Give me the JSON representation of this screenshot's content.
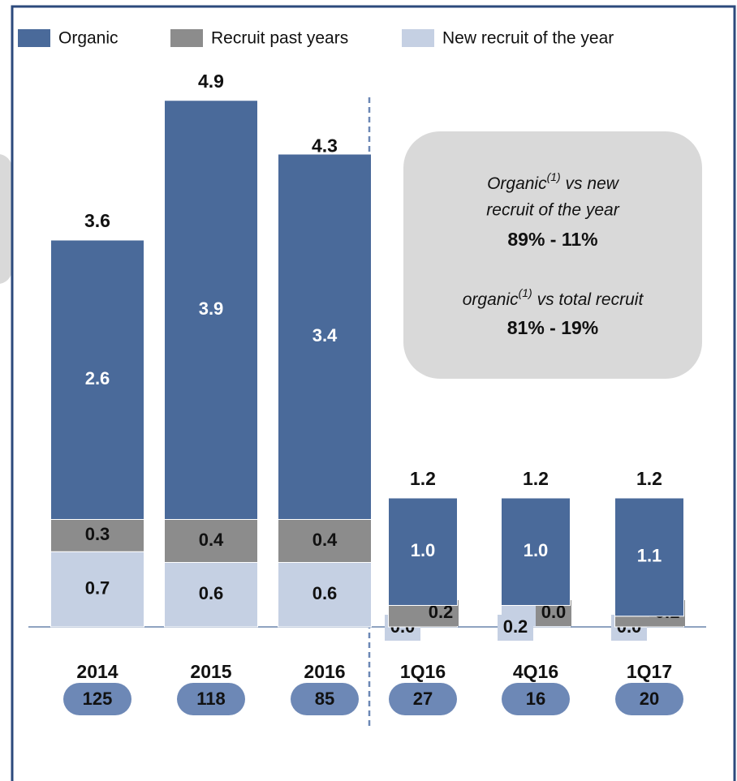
{
  "chart_data": {
    "type": "stacked-bar",
    "categories": [
      "2014",
      "2015",
      "2016",
      "1Q16",
      "4Q16",
      "1Q17"
    ],
    "series": [
      {
        "name": "Organic",
        "color": "#4a6a9a",
        "values": [
          2.6,
          3.9,
          3.4,
          1.0,
          1.0,
          1.1
        ],
        "value_labels": [
          "2.6",
          "3.9",
          "3.4",
          "1.0",
          "1.0",
          "1.1"
        ]
      },
      {
        "name": "Recruit past years",
        "color": "#8c8c8c",
        "values": [
          0.3,
          0.4,
          0.4,
          0.2,
          0.0,
          0.1
        ],
        "value_labels": [
          "0.3",
          "0.4",
          "0.4",
          "0.2",
          "0.0",
          "0.1"
        ]
      },
      {
        "name": "New recruit of the year",
        "color": "#c5d0e3",
        "values": [
          0.7,
          0.6,
          0.6,
          0.0,
          0.2,
          0.0
        ],
        "value_labels": [
          "0.7",
          "0.6",
          "0.6",
          "0.0",
          "0.2",
          "0.0"
        ]
      }
    ],
    "totals": [
      3.6,
      4.9,
      4.3,
      1.2,
      1.2,
      1.2
    ],
    "counts": [
      125,
      118,
      85,
      27,
      16,
      20
    ],
    "annotations": [
      {
        "before": "Organic",
        "sup": "(1)",
        "after": " vs new",
        "line2": "recruit of the year",
        "figure": "89% - 11%"
      },
      {
        "before": "organic",
        "sup": "(1)",
        "after": " vs total recruit",
        "figure": "81% - 19%"
      }
    ]
  }
}
